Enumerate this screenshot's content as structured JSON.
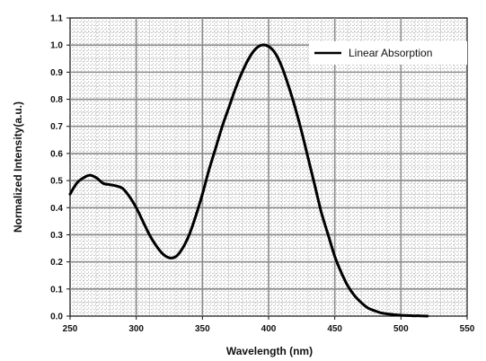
{
  "chart_data": {
    "type": "line",
    "title": "",
    "xlabel": "Wavelength (nm)",
    "ylabel": "Normalized Intensity(a.u.)",
    "xlim": [
      250,
      550
    ],
    "ylim": [
      0.0,
      1.1
    ],
    "x_ticks": [
      "250",
      "300",
      "350",
      "400",
      "450",
      "500",
      "550"
    ],
    "y_ticks": [
      "0.0",
      "0.1",
      "0.2",
      "0.3",
      "0.4",
      "0.5",
      "0.6",
      "0.7",
      "0.8",
      "0.9",
      "1.0",
      "1.1"
    ],
    "grid": true,
    "legend_position": "top-right",
    "series": [
      {
        "name": "Linear Absorption",
        "color": "#000000",
        "x": [
          250,
          255,
          260,
          265,
          270,
          275,
          280,
          285,
          290,
          295,
          300,
          305,
          310,
          315,
          320,
          325,
          330,
          335,
          340,
          345,
          350,
          355,
          360,
          365,
          370,
          375,
          380,
          385,
          390,
          395,
          400,
          405,
          410,
          415,
          420,
          425,
          430,
          435,
          440,
          445,
          450,
          455,
          460,
          465,
          470,
          475,
          480,
          485,
          490,
          495,
          500,
          505,
          510,
          515,
          520
        ],
        "y": [
          0.45,
          0.49,
          0.51,
          0.52,
          0.51,
          0.49,
          0.485,
          0.48,
          0.47,
          0.44,
          0.4,
          0.35,
          0.3,
          0.26,
          0.23,
          0.215,
          0.22,
          0.25,
          0.3,
          0.37,
          0.45,
          0.54,
          0.62,
          0.7,
          0.77,
          0.84,
          0.9,
          0.95,
          0.985,
          1.0,
          0.995,
          0.97,
          0.92,
          0.85,
          0.77,
          0.68,
          0.58,
          0.48,
          0.38,
          0.3,
          0.22,
          0.16,
          0.11,
          0.075,
          0.05,
          0.03,
          0.02,
          0.012,
          0.008,
          0.005,
          0.003,
          0.002,
          0.001,
          0.001,
          0.0
        ]
      }
    ]
  }
}
